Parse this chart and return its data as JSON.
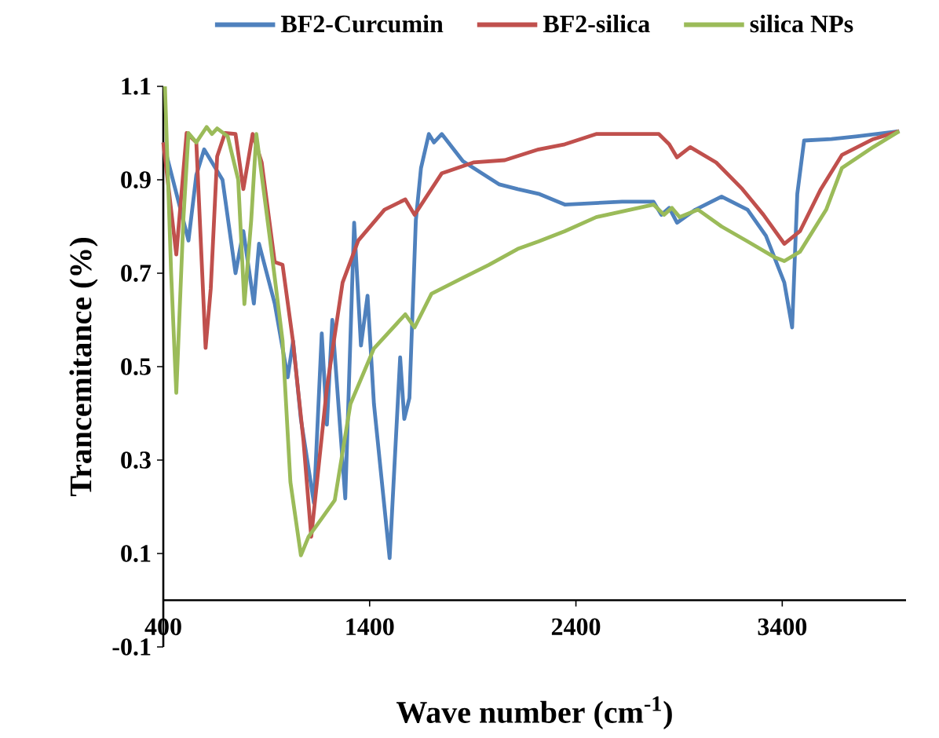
{
  "chart_data": {
    "type": "line",
    "xlabel": "Wave number (cm$^{-1}$)",
    "ylabel": "Trancemitance (%)",
    "xlim": [
      400,
      4000
    ],
    "xticks": [
      400,
      1400,
      2400,
      3400
    ],
    "ylim": [
      -0.1,
      1.1
    ],
    "yticks": [
      -0.1,
      0.1,
      0.3,
      0.5,
      0.7,
      0.9,
      1.1
    ],
    "legend": "top",
    "series": [
      {
        "name": "BF2-Curcumin",
        "color": "#4f81bd",
        "x": [
          400,
          522,
          560,
          598,
          687,
          750,
          788,
          839,
          864,
          940,
          1003,
          1029,
          1067,
          1130,
          1168,
          1193,
          1219,
          1282,
          1325,
          1358,
          1390,
          1421,
          1497,
          1548,
          1568,
          1593,
          1624,
          1649,
          1687,
          1712,
          1750,
          1852,
          2029,
          2118,
          2219,
          2346,
          2624,
          2776,
          2814,
          2852,
          2890,
          2979,
          3106,
          3232,
          3321,
          3410,
          3448,
          3473,
          3506,
          3638,
          3764,
          3967
        ],
        "values": [
          0.98,
          0.77,
          0.91,
          0.965,
          0.9,
          0.7,
          0.79,
          0.635,
          0.763,
          0.635,
          0.477,
          0.555,
          0.387,
          0.208,
          0.571,
          0.376,
          0.6,
          0.218,
          0.808,
          0.545,
          0.652,
          0.42,
          0.09,
          0.52,
          0.388,
          0.433,
          0.813,
          0.925,
          0.998,
          0.98,
          0.998,
          0.94,
          0.89,
          0.88,
          0.87,
          0.847,
          0.853,
          0.853,
          0.825,
          0.84,
          0.808,
          0.836,
          0.864,
          0.836,
          0.78,
          0.68,
          0.584,
          0.87,
          0.984,
          0.987,
          0.993,
          1.004
        ]
      },
      {
        "name": "BF2-silica",
        "color": "#c0504d",
        "x": [
          400,
          463,
          513,
          560,
          605,
          630,
          661,
          699,
          750,
          788,
          833,
          877,
          940,
          978,
          1028,
          1079,
          1117,
          1193,
          1269,
          1345,
          1472,
          1573,
          1618,
          1750,
          1903,
          2055,
          2219,
          2346,
          2498,
          2802,
          2852,
          2890,
          2954,
          3080,
          3207,
          3309,
          3410,
          3486,
          3587,
          3689,
          3841,
          3967
        ],
        "values": [
          0.98,
          0.74,
          1.0,
          0.98,
          0.54,
          0.667,
          0.95,
          1.0,
          0.998,
          0.88,
          0.998,
          0.937,
          0.724,
          0.718,
          0.556,
          0.343,
          0.136,
          0.455,
          0.68,
          0.77,
          0.836,
          0.858,
          0.825,
          0.914,
          0.937,
          0.942,
          0.965,
          0.976,
          0.998,
          0.998,
          0.976,
          0.948,
          0.97,
          0.937,
          0.88,
          0.825,
          0.763,
          0.79,
          0.88,
          0.953,
          0.987,
          1.004
        ]
      },
      {
        "name": "silica NPs",
        "color": "#9bbb59",
        "x": [
          408,
          438,
          463,
          497,
          522,
          560,
          610,
          636,
          661,
          712,
          763,
          793,
          826,
          851,
          915,
          978,
          1016,
          1067,
          1104,
          1168,
          1231,
          1307,
          1421,
          1573,
          1618,
          1700,
          1852,
          1978,
          2118,
          2219,
          2346,
          2498,
          2776,
          2827,
          2865,
          2903,
          2992,
          3106,
          3232,
          3359,
          3410,
          3486,
          3613,
          3689,
          3841,
          3967
        ],
        "values": [
          1.1,
          0.7,
          0.444,
          0.813,
          1.0,
          0.98,
          1.013,
          0.998,
          1.01,
          0.993,
          0.9,
          0.634,
          0.813,
          0.998,
          0.78,
          0.556,
          0.253,
          0.096,
          0.136,
          0.175,
          0.214,
          0.42,
          0.539,
          0.612,
          0.584,
          0.656,
          0.69,
          0.718,
          0.752,
          0.768,
          0.79,
          0.82,
          0.847,
          0.825,
          0.84,
          0.82,
          0.836,
          0.8,
          0.768,
          0.735,
          0.726,
          0.746,
          0.836,
          0.925,
          0.97,
          1.004
        ]
      }
    ]
  }
}
